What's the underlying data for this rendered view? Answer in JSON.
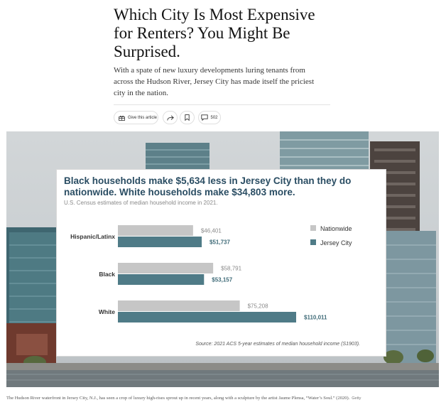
{
  "article": {
    "headline": "Which City Is Most Expensive for Renters? You Might Be Surprised.",
    "summary": "With a spate of new luxury developments luring tenants from across the Hudson River, Jersey City has made itself the priciest city in the nation."
  },
  "share_bar": {
    "gift_label": "Give this article",
    "comments_count": "502",
    "icons": [
      "gift-icon",
      "share-arrow-icon",
      "bookmark-icon",
      "comment-icon"
    ]
  },
  "chart_data": {
    "type": "bar",
    "orientation": "horizontal",
    "title": "Black households make $5,634 less in Jersey City than they do nationwide. White households make $34,803 more.",
    "subtitle": "U.S. Census estimates of median household income in 2021.",
    "categories": [
      "Hispanic/Latinx",
      "Black",
      "White"
    ],
    "series": [
      {
        "name": "Nationwide",
        "values": [
          46401,
          58791,
          75208
        ],
        "labels": [
          "$46,401",
          "$58,791",
          "$75,208"
        ],
        "color": "#c6c6c6"
      },
      {
        "name": "Jersey City",
        "values": [
          51737,
          53157,
          110011
        ],
        "labels": [
          "$51,737",
          "$53,157",
          "$110,011"
        ],
        "color": "#4f7b87"
      }
    ],
    "source": "Source: 2021 ACS 5-year estimates  of median household income (S1903).",
    "legend_position": "top-right",
    "grid": false
  },
  "photo": {
    "caption": "The Hudson River waterfront in Jersey City, N.J., has seen a crop of luxury high-rises sprout up in recent years, along with a sculpture by the artist Jaume Plensa, “Water’s Soul.” (2020).",
    "credit": "Getty"
  }
}
